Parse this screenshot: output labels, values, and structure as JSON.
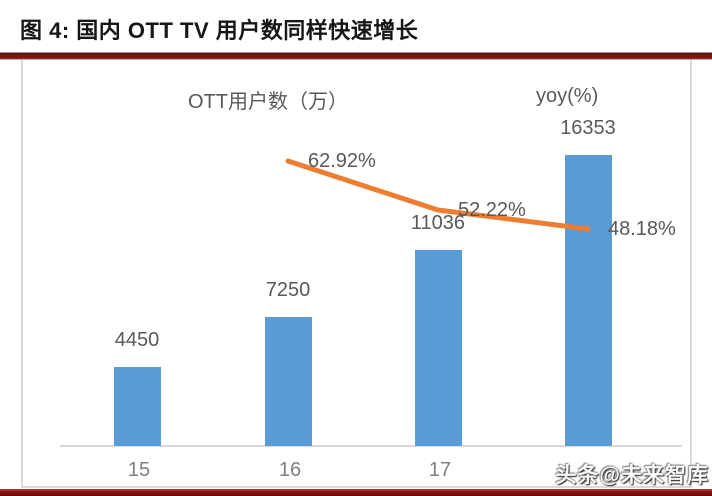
{
  "figure": {
    "title": "图 4: 国内 OTT TV 用户数同样快速增长",
    "watermark": "头条@未来智库"
  },
  "chart_data": {
    "type": "bar",
    "title": "图 4: 国内 OTT TV 用户数同样快速增长",
    "categories": [
      "15",
      "16",
      "17",
      "18"
    ],
    "x_tick_labels_visible": [
      "15",
      "16",
      "17",
      ""
    ],
    "series": [
      {
        "name": "OTT用户数（万）",
        "type": "bar",
        "color": "#5B9BD5",
        "values": [
          4450,
          7250,
          11036,
          16353
        ],
        "data_labels": [
          "4450",
          "7250",
          "11036",
          "16353"
        ]
      },
      {
        "name": "yoy(%)",
        "type": "line",
        "color": "#ED7D31",
        "values": [
          null,
          62.92,
          52.22,
          48.18
        ],
        "data_labels": [
          null,
          "62.92%",
          "52.22%",
          "48.18%"
        ]
      }
    ],
    "legend_position": "top",
    "grid": false,
    "xlabel": "",
    "ylabel": "",
    "ylim_primary": [
      0,
      18000
    ],
    "ylim_secondary": [
      40,
      70
    ]
  },
  "colors": {
    "bar": "#5B9BD5",
    "line": "#ED7D31",
    "rule_maroon": "#8A1616",
    "data_label_gray": "#595959",
    "tick_gray": "#7F7F7F",
    "border_gray": "#D9D9D9"
  }
}
